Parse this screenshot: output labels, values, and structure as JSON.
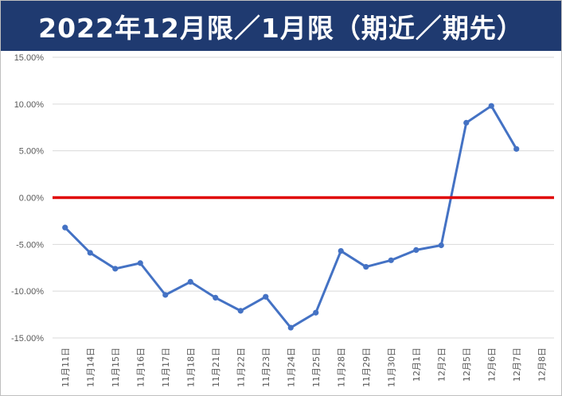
{
  "colors": {
    "title_bg": "#1f3a70",
    "line": "#4472c4",
    "zero_line": "#e00000",
    "grid": "#d9d9d9"
  },
  "chart_data": {
    "type": "line",
    "title": "2022年12月限／1月限（期近／期先）",
    "xlabel": "",
    "ylabel": "",
    "categories": [
      "11月11日",
      "11月14日",
      "11月15日",
      "11月16日",
      "11月17日",
      "11月18日",
      "11月21日",
      "11月22日",
      "11月23日",
      "11月24日",
      "11月25日",
      "11月28日",
      "11月29日",
      "11月30日",
      "12月1日",
      "12月2日",
      "12月5日",
      "12月6日",
      "12月7日",
      "12月8日"
    ],
    "series": [
      {
        "values": [
          -3.2,
          -5.9,
          -7.6,
          -7.0,
          -10.4,
          -9.0,
          -10.7,
          -12.1,
          -10.6,
          -13.9,
          -12.3,
          -5.7,
          -7.4,
          -6.7,
          -5.6,
          -5.1,
          8.0,
          9.8,
          5.2,
          null
        ]
      }
    ],
    "reference_line": 0,
    "ylim": [
      -15,
      15
    ],
    "yticks": [
      15,
      10,
      5,
      0,
      -5,
      -10,
      -15
    ],
    "ytick_labels": [
      "15.00%",
      "10.00%",
      "5.00%",
      "0.00%",
      "-5.00%",
      "-10.00%",
      "-15.00%"
    ],
    "grid": true,
    "legend": "none"
  }
}
